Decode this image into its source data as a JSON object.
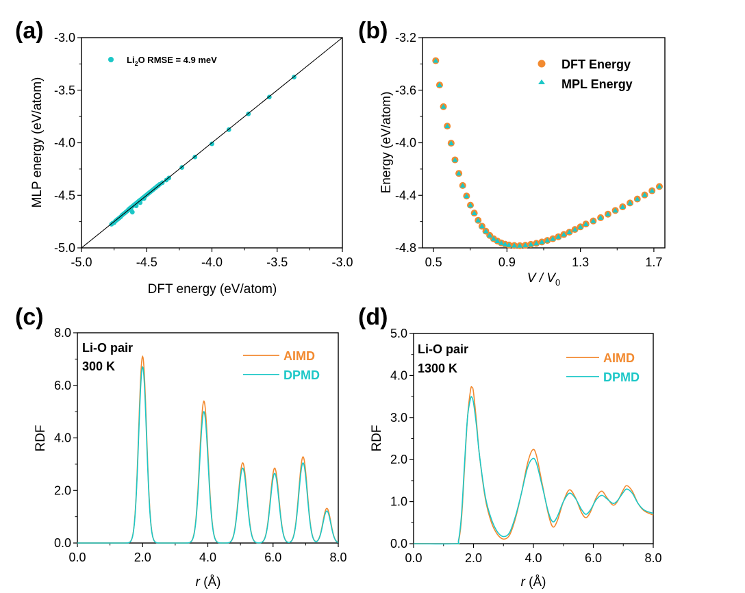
{
  "colors": {
    "dft_orange": "#F28A30",
    "mlp_cyan": "#1CC7C7",
    "black": "#000000"
  },
  "chart_data": [
    {
      "id": "a",
      "panel_label": "(a)",
      "type": "scatter",
      "xlabel": "DFT energy (eV/atom)",
      "ylabel": "MLP energy (eV/atom)",
      "xlim": [
        -5.0,
        -3.0
      ],
      "ylim": [
        -5.0,
        -3.0
      ],
      "xticks": [
        -5.0,
        -4.5,
        -4.0,
        -3.5,
        -3.0
      ],
      "yticks": [
        -5.0,
        -4.5,
        -4.0,
        -3.5,
        -3.0
      ],
      "xtick_labels": [
        "-5.0",
        "-4.5",
        "-4.0",
        "-3.5",
        "-3.0"
      ],
      "ytick_labels": [
        "-5.0",
        "-4.5",
        "-4.0",
        "-3.5",
        "-3.0"
      ],
      "grid": false,
      "legend": {
        "position": "top-left",
        "label_main": "Li",
        "label_sub": "2",
        "label_rest": "O RMSE = 4.9 meV"
      },
      "reference_line": {
        "from": [
          -5.0,
          -5.0
        ],
        "to": [
          -3.0,
          -3.0
        ]
      },
      "series": [
        {
          "name": "Li2O",
          "color": "#1CC7C7",
          "points": [
            [
              -4.77,
              -4.775
            ],
            [
              -4.76,
              -4.765
            ],
            [
              -4.75,
              -4.76
            ],
            [
              -4.74,
              -4.745
            ],
            [
              -4.73,
              -4.735
            ],
            [
              -4.72,
              -4.725
            ],
            [
              -4.71,
              -4.715
            ],
            [
              -4.7,
              -4.705
            ],
            [
              -4.69,
              -4.69
            ],
            [
              -4.68,
              -4.68
            ],
            [
              -4.67,
              -4.67
            ],
            [
              -4.66,
              -4.66
            ],
            [
              -4.65,
              -4.65
            ],
            [
              -4.64,
              -4.635
            ],
            [
              -4.63,
              -4.625
            ],
            [
              -4.62,
              -4.615
            ],
            [
              -4.61,
              -4.605
            ],
            [
              -4.6,
              -4.595
            ],
            [
              -4.59,
              -4.585
            ],
            [
              -4.58,
              -4.575
            ],
            [
              -4.57,
              -4.565
            ],
            [
              -4.56,
              -4.555
            ],
            [
              -4.55,
              -4.545
            ],
            [
              -4.54,
              -4.535
            ],
            [
              -4.53,
              -4.525
            ],
            [
              -4.52,
              -4.515
            ],
            [
              -4.51,
              -4.505
            ],
            [
              -4.5,
              -4.495
            ],
            [
              -4.49,
              -4.485
            ],
            [
              -4.48,
              -4.475
            ],
            [
              -4.47,
              -4.465
            ],
            [
              -4.46,
              -4.455
            ],
            [
              -4.45,
              -4.445
            ],
            [
              -4.44,
              -4.435
            ],
            [
              -4.43,
              -4.425
            ],
            [
              -4.42,
              -4.415
            ],
            [
              -4.41,
              -4.405
            ],
            [
              -4.4,
              -4.395
            ],
            [
              -4.38,
              -4.38
            ],
            [
              -4.61,
              -4.66
            ],
            [
              -4.62,
              -4.64
            ],
            [
              -4.58,
              -4.6
            ],
            [
              -4.55,
              -4.57
            ],
            [
              -4.52,
              -4.53
            ],
            [
              -4.35,
              -4.355
            ],
            [
              -4.33,
              -4.335
            ],
            [
              -4.23,
              -4.235
            ],
            [
              -4.13,
              -4.135
            ],
            [
              -4.0,
              -4.01
            ],
            [
              -3.87,
              -3.875
            ],
            [
              -3.72,
              -3.725
            ],
            [
              -3.56,
              -3.565
            ],
            [
              -3.37,
              -3.375
            ]
          ]
        }
      ]
    },
    {
      "id": "b",
      "panel_label": "(b)",
      "type": "scatter",
      "xlabel": "V / V",
      "xlabel_sub": "0",
      "ylabel": "Energy (eV/atom)",
      "xlim": [
        0.44,
        1.76
      ],
      "ylim": [
        -4.8,
        -3.2
      ],
      "xticks": [
        0.5,
        0.9,
        1.3,
        1.7
      ],
      "yticks": [
        -4.8,
        -4.4,
        -4.0,
        -3.6,
        -3.2
      ],
      "xtick_labels": [
        "0.5",
        "0.9",
        "1.3",
        "1.7"
      ],
      "ytick_labels": [
        "-4.8",
        "-4.4",
        "-4.0",
        "-3.6",
        "-3.2"
      ],
      "grid": false,
      "legend": {
        "position": "top-right",
        "entries": [
          "DFT Energy",
          "MPL Energy"
        ]
      },
      "x": [
        0.512,
        0.533,
        0.554,
        0.575,
        0.596,
        0.617,
        0.638,
        0.659,
        0.68,
        0.701,
        0.722,
        0.743,
        0.764,
        0.785,
        0.806,
        0.827,
        0.848,
        0.869,
        0.89,
        0.911,
        0.94,
        0.97,
        1.0,
        1.03,
        1.06,
        1.09,
        1.12,
        1.15,
        1.18,
        1.21,
        1.24,
        1.27,
        1.3,
        1.33,
        1.37,
        1.41,
        1.45,
        1.49,
        1.53,
        1.57,
        1.61,
        1.65,
        1.69,
        1.73
      ],
      "series": [
        {
          "name": "DFT Energy",
          "marker": "circle",
          "color": "#F28A30",
          "values": [
            -3.375,
            -3.56,
            -3.725,
            -3.873,
            -4.003,
            -4.13,
            -4.233,
            -4.325,
            -4.405,
            -4.475,
            -4.535,
            -4.59,
            -4.635,
            -4.673,
            -4.705,
            -4.73,
            -4.748,
            -4.762,
            -4.772,
            -4.778,
            -4.782,
            -4.783,
            -4.78,
            -4.773,
            -4.765,
            -4.755,
            -4.743,
            -4.73,
            -4.715,
            -4.698,
            -4.68,
            -4.66,
            -4.64,
            -4.618,
            -4.595,
            -4.57,
            -4.543,
            -4.515,
            -4.487,
            -4.458,
            -4.428,
            -4.397,
            -4.365,
            -4.333
          ]
        },
        {
          "name": "MPL Energy",
          "marker": "triangle",
          "color": "#1CC7C7",
          "values": [
            -3.375,
            -3.56,
            -3.725,
            -3.873,
            -4.003,
            -4.13,
            -4.233,
            -4.325,
            -4.405,
            -4.475,
            -4.535,
            -4.59,
            -4.635,
            -4.673,
            -4.705,
            -4.73,
            -4.748,
            -4.762,
            -4.772,
            -4.778,
            -4.782,
            -4.783,
            -4.78,
            -4.773,
            -4.765,
            -4.755,
            -4.743,
            -4.73,
            -4.715,
            -4.698,
            -4.68,
            -4.66,
            -4.64,
            -4.618,
            -4.595,
            -4.57,
            -4.543,
            -4.515,
            -4.487,
            -4.458,
            -4.428,
            -4.397,
            -4.365,
            -4.333
          ]
        }
      ]
    },
    {
      "id": "c",
      "panel_label": "(c)",
      "type": "line",
      "xlabel_italic": "r",
      "xlabel_rest": " (Å)",
      "ylabel": "RDF",
      "xlim": [
        0.0,
        8.0
      ],
      "ylim": [
        0.0,
        8.0
      ],
      "xticks": [
        0,
        2,
        4,
        6,
        8
      ],
      "yticks": [
        0,
        2,
        4,
        6,
        8
      ],
      "xtick_labels": [
        "0.0",
        "2.0",
        "4.0",
        "6.0",
        "8.0"
      ],
      "ytick_labels": [
        "0.0",
        "2.0",
        "4.0",
        "6.0",
        "8.0"
      ],
      "annotation": [
        "Li-O pair",
        "300 K"
      ],
      "grid": false,
      "legend": {
        "position": "top-right",
        "entries": [
          "AIMD",
          "DPMD"
        ]
      },
      "peaks": [
        {
          "r": 2.0,
          "AIMD": 7.1,
          "DPMD": 6.7,
          "width": 0.12
        },
        {
          "r": 3.88,
          "AIMD": 5.4,
          "DPMD": 5.0,
          "width": 0.13
        },
        {
          "r": 5.07,
          "AIMD": 3.05,
          "DPMD": 2.85,
          "width": 0.13
        },
        {
          "r": 6.05,
          "AIMD": 2.85,
          "DPMD": 2.65,
          "width": 0.13
        },
        {
          "r": 6.92,
          "AIMD": 3.28,
          "DPMD": 3.05,
          "width": 0.13
        },
        {
          "r": 7.65,
          "AIMD": 1.32,
          "DPMD": 1.22,
          "width": 0.12
        }
      ],
      "series": [
        {
          "name": "AIMD",
          "color": "#F28A30"
        },
        {
          "name": "DPMD",
          "color": "#1CC7C7"
        }
      ]
    },
    {
      "id": "d",
      "panel_label": "(d)",
      "type": "line",
      "xlabel_italic": "r",
      "xlabel_rest": " (Å)",
      "ylabel": "RDF",
      "xlim": [
        0.0,
        8.0
      ],
      "ylim": [
        0.0,
        5.0
      ],
      "xticks": [
        0,
        2,
        4,
        6,
        8
      ],
      "yticks": [
        0,
        1,
        2,
        3,
        4,
        5
      ],
      "xtick_labels": [
        "0.0",
        "2.0",
        "4.0",
        "6.0",
        "8.0"
      ],
      "ytick_labels": [
        "0.0",
        "1.0",
        "2.0",
        "3.0",
        "4.0",
        "5.0"
      ],
      "annotation": [
        "Li-O pair",
        "1300 K"
      ],
      "grid": false,
      "legend": {
        "position": "top-right",
        "entries": [
          "AIMD",
          "DPMD"
        ]
      },
      "series": [
        {
          "name": "AIMD",
          "color": "#F28A30",
          "x": [
            0,
            1.4,
            1.5,
            1.6,
            1.7,
            1.8,
            1.9,
            1.95,
            2.0,
            2.1,
            2.2,
            2.4,
            2.6,
            2.8,
            3.0,
            3.2,
            3.4,
            3.6,
            3.8,
            3.97,
            4.1,
            4.3,
            4.5,
            4.65,
            4.8,
            5.0,
            5.2,
            5.4,
            5.6,
            5.75,
            5.9,
            6.1,
            6.28,
            6.45,
            6.65,
            6.8,
            7.0,
            7.12,
            7.3,
            7.5,
            7.7,
            8.0
          ],
          "y": [
            0,
            0,
            0.05,
            0.6,
            1.8,
            3.0,
            3.65,
            3.72,
            3.6,
            2.9,
            2.1,
            1.05,
            0.5,
            0.22,
            0.11,
            0.2,
            0.6,
            1.2,
            1.9,
            2.23,
            2.1,
            1.4,
            0.7,
            0.4,
            0.55,
            1.0,
            1.28,
            1.1,
            0.75,
            0.62,
            0.75,
            1.1,
            1.25,
            1.1,
            0.92,
            1.0,
            1.28,
            1.38,
            1.25,
            0.95,
            0.78,
            0.68
          ]
        },
        {
          "name": "DPMD",
          "color": "#1CC7C7",
          "x": [
            0,
            1.4,
            1.5,
            1.6,
            1.7,
            1.8,
            1.9,
            1.95,
            2.0,
            2.1,
            2.2,
            2.4,
            2.6,
            2.8,
            3.0,
            3.2,
            3.4,
            3.6,
            3.8,
            3.97,
            4.1,
            4.3,
            4.5,
            4.65,
            4.8,
            5.0,
            5.2,
            5.4,
            5.6,
            5.75,
            5.9,
            6.1,
            6.28,
            6.45,
            6.65,
            6.8,
            7.0,
            7.12,
            7.3,
            7.5,
            7.7,
            8.0
          ],
          "y": [
            0,
            0,
            0.08,
            0.7,
            1.9,
            3.0,
            3.45,
            3.48,
            3.35,
            2.8,
            2.1,
            1.1,
            0.58,
            0.28,
            0.17,
            0.26,
            0.65,
            1.2,
            1.8,
            2.02,
            1.92,
            1.35,
            0.75,
            0.52,
            0.65,
            1.0,
            1.2,
            1.08,
            0.82,
            0.7,
            0.8,
            1.05,
            1.15,
            1.07,
            0.96,
            1.02,
            1.22,
            1.3,
            1.2,
            0.95,
            0.8,
            0.72
          ]
        }
      ]
    }
  ]
}
